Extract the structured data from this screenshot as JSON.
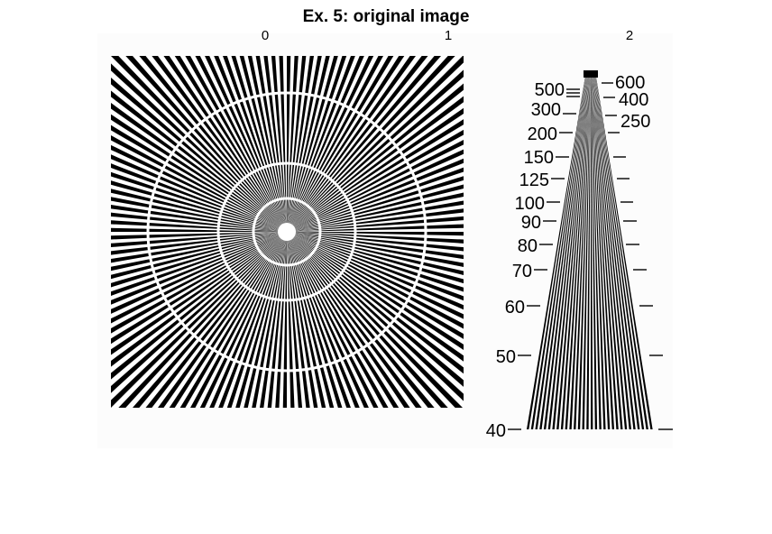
{
  "title": "Ex. 5: original image",
  "top_axis": {
    "tick_labels": [
      "0",
      "1",
      "2"
    ]
  },
  "star_pattern": {
    "spokes": 144,
    "rings": 4,
    "colors": {
      "foreground": "#000000",
      "background": "#ffffff",
      "panel": "#fcfcfc"
    }
  },
  "wedge_pattern": {
    "bars": 30,
    "left_labels": [
      "500",
      "300",
      "200",
      "150",
      "125",
      "100",
      "90",
      "80",
      "70",
      "60",
      "50",
      "40"
    ],
    "right_labels": [
      "600",
      "400",
      "250"
    ]
  }
}
